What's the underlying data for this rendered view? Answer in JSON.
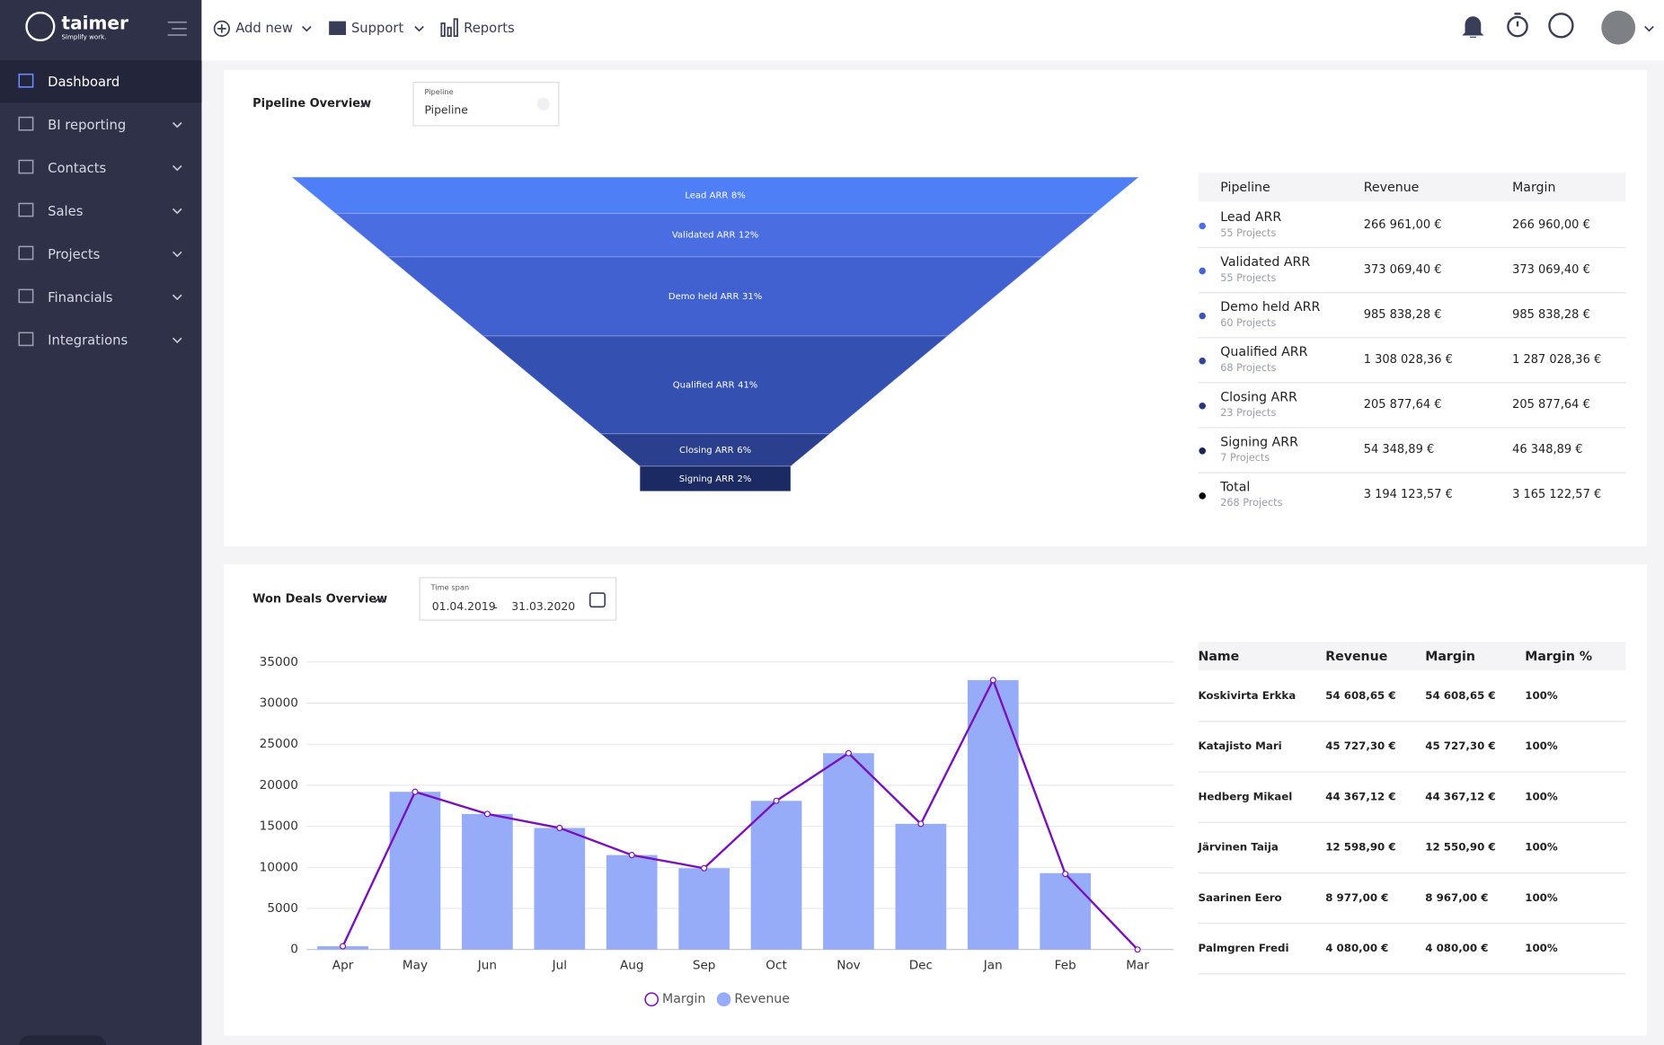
{
  "sidebar": {
    "logo": "taimer",
    "tagline": "Simplify work.",
    "items": [
      "Dashboard",
      "BI reporting",
      "Contacts",
      "Sales",
      "Projects",
      "Financials",
      "Integrations"
    ]
  },
  "topbar": {
    "items": [
      "Add new",
      "Support",
      "Reports"
    ]
  },
  "pipeline_overview": {
    "title": "Pipeline Overview",
    "select_label": "Pipeline",
    "select_value": "Pipeline",
    "table": {
      "columns": [
        "Pipeline",
        "Revenue",
        "Margin"
      ],
      "dot_colors": [
        "#4a6ee8",
        "#4563d6",
        "#3c55bd",
        "#30449a",
        "#283880",
        "#1b2455",
        "#000000"
      ],
      "rows": [
        [
          "Lead ARR",
          "55 Projects",
          "266 961,00 €",
          "266 960,00 €"
        ],
        [
          "Validated ARR",
          "55 Projects",
          "373 069,40 €",
          "373 069,40 €"
        ],
        [
          "Demo held ARR",
          "60 Projects",
          "985 838,28 €",
          "985 838,28 €"
        ],
        [
          "Qualified ARR",
          "68 Projects",
          "1 308 028,36 €",
          "1 287 028,36 €"
        ],
        [
          "Closing ARR",
          "23 Projects",
          "205 877,64 €",
          "205 877,64 €"
        ],
        [
          "Signing ARR",
          "7 Projects",
          "54 348,89 €",
          "46 348,89 €"
        ],
        [
          "Total",
          "268 Projects",
          "3 194 123,57 €",
          "3 165 122,57 €"
        ]
      ]
    }
  },
  "won_deals": {
    "title": "Won Deals Overview",
    "time_span_label": "Time span",
    "date_from": "01.04.2019",
    "date_separator": "-",
    "date_to": "31.03.2020",
    "table": {
      "columns": [
        "Name",
        "Revenue",
        "Margin",
        "Margin %"
      ],
      "rows": [
        [
          "Koskivirta Erkka",
          "54 608,65 €",
          "54 608,65 €",
          "100%"
        ],
        [
          "Katajisto Mari",
          "45 727,30 €",
          "45 727,30 €",
          "100%"
        ],
        [
          "Hedberg Mikael",
          "44 367,12 €",
          "44 367,12 €",
          "100%"
        ],
        [
          "Järvinen Taija",
          "12 598,90 €",
          "12 550,90 €",
          "100%"
        ],
        [
          "Saarinen Eero",
          "8 977,00 €",
          "8 967,00 €",
          "100%"
        ],
        [
          "Palmgren Fredi",
          "4 080,00 €",
          "4 080,00 €",
          "100%"
        ]
      ]
    }
  },
  "chart_data": [
    {
      "type": "funnel",
      "categories": [
        "Lead ARR",
        "Validated ARR",
        "Demo held ARR",
        "Qualified ARR",
        "Closing ARR",
        "Signing ARR"
      ],
      "values": [
        8,
        12,
        31,
        41,
        6,
        2
      ],
      "value_labels": [
        "8%",
        "12%",
        "31%",
        "41%",
        "6%",
        "2%"
      ],
      "colors": [
        "#4f7ff6",
        "#4a6ee2",
        "#4061cf",
        "#3450b0",
        "#2a3f8e",
        "#1c2a63"
      ]
    },
    {
      "type": "bar_line",
      "categories": [
        "Apr",
        "May",
        "Jun",
        "Jul",
        "Aug",
        "Sep",
        "Oct",
        "Nov",
        "Dec",
        "Jan",
        "Feb",
        "Mar"
      ],
      "series": [
        {
          "name": "Margin",
          "type": "line",
          "color": "#7a0fc0",
          "values": [
            400,
            19200,
            16500,
            14800,
            11500,
            9900,
            18100,
            23900,
            15300,
            32800,
            9200,
            0
          ]
        },
        {
          "name": "Revenue",
          "type": "bar",
          "color": "#97acf9",
          "values": [
            400,
            19200,
            16500,
            14800,
            11500,
            9900,
            18100,
            23900,
            15300,
            32800,
            9300,
            0
          ]
        }
      ],
      "ylim": [
        0,
        35000
      ],
      "yticks": [
        0,
        5000,
        10000,
        15000,
        20000,
        25000,
        30000,
        35000
      ],
      "grid": true,
      "legend": "bottom"
    }
  ]
}
